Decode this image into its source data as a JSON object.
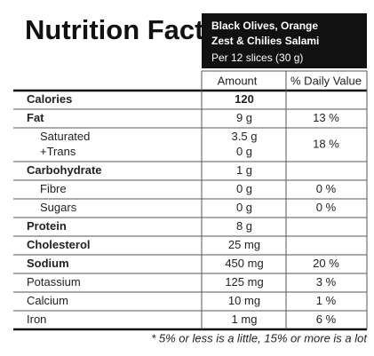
{
  "header": {
    "title": "Nutrition Facts",
    "product": "Black Olives, Orange Zest & Chilies Salami",
    "serving": "Per 12 slices (30 g)"
  },
  "table": {
    "columns": [
      "Amount",
      "% Daily Value"
    ],
    "rows": [
      {
        "label": [
          "Calories"
        ],
        "amount": [
          "120"
        ],
        "bold": true
      },
      {
        "label": [
          "Fat"
        ],
        "amount": [
          "9 g"
        ],
        "dv": "13 %",
        "bold": true
      },
      {
        "label": [
          "Saturated",
          "+Trans"
        ],
        "amount": [
          "3.5 g",
          "0 g"
        ],
        "dv": "18 %",
        "sub": true
      },
      {
        "label": [
          "Carbohydrate"
        ],
        "amount": [
          "1 g"
        ],
        "bold": true
      },
      {
        "label": [
          "Fibre"
        ],
        "amount": [
          "0 g"
        ],
        "dv": "0 %",
        "sub": true
      },
      {
        "label": [
          "Sugars"
        ],
        "amount": [
          "0 g"
        ],
        "dv": "0 %",
        "sub": true
      },
      {
        "label": [
          "Protein"
        ],
        "amount": [
          "8 g"
        ],
        "bold": true
      },
      {
        "label": [
          "Cholesterol"
        ],
        "amount": [
          "25 mg"
        ],
        "bold": true
      },
      {
        "label": [
          "Sodium"
        ],
        "amount": [
          "450 mg"
        ],
        "dv": "20 %",
        "bold": true
      },
      {
        "label": [
          "Potassium"
        ],
        "amount": [
          "125 mg"
        ],
        "dv": "3 %"
      },
      {
        "label": [
          "Calcium"
        ],
        "amount": [
          "10 mg"
        ],
        "dv": "1 %"
      },
      {
        "label": [
          "Iron"
        ],
        "amount": [
          "1 mg"
        ],
        "dv": "6 %"
      }
    ]
  },
  "footnote": "* 5% or less is a little, 15% or more is a lot"
}
